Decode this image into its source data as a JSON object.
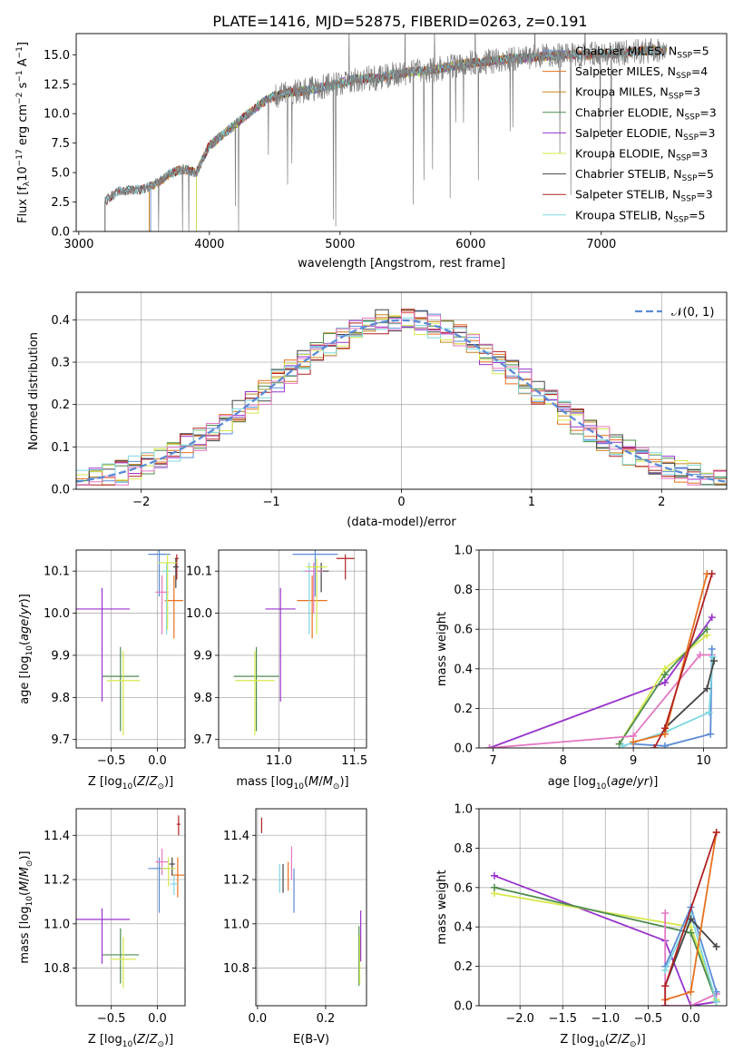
{
  "figure_title": "PLATE=1416, MJD=52875, FIBERID=0263, z=0.191",
  "colors": {
    "grid": "#b0b0b0",
    "data": "#808080",
    "normal": "#5b8bd6"
  },
  "chart_data": [
    {
      "id": "spectrum",
      "type": "line",
      "xlabel": "wavelength [Angstrom, rest frame]",
      "ylabel": "Flux [f_λ 10^-17 erg cm^-2 s^-1 A^-1]",
      "xlim": [
        2980,
        7960
      ],
      "ylim": [
        0,
        16.8
      ],
      "xticks": [
        3000,
        4000,
        5000,
        6000,
        7000
      ],
      "yticks": [
        0.0,
        2.5,
        5.0,
        7.5,
        10.0,
        12.5,
        15.0
      ],
      "grid": false,
      "legend_position": "top-right",
      "x": [
        3200,
        3300,
        3400,
        3500,
        3600,
        3700,
        3800,
        3900,
        4000,
        4100,
        4200,
        4300,
        4400,
        4500,
        4600,
        4700,
        4800,
        4900,
        5000,
        5100,
        5200,
        5300,
        5400,
        5500,
        5600,
        5700,
        5800,
        5900,
        6000,
        6100,
        6200,
        6300,
        6400,
        6500,
        6600,
        6700,
        6800,
        6900,
        7000,
        7100,
        7200,
        7300,
        7400
      ],
      "data_flux": [
        2.6,
        3.4,
        3.5,
        3.6,
        4.1,
        4.9,
        5.3,
        5.0,
        7.3,
        8.2,
        9.1,
        10.0,
        10.9,
        11.5,
        11.8,
        11.9,
        12.1,
        12.3,
        12.6,
        12.9,
        13.0,
        13.0,
        13.3,
        13.5,
        13.6,
        13.7,
        13.9,
        14.1,
        14.3,
        14.4,
        14.5,
        14.7,
        14.7,
        14.8,
        14.9,
        15.0,
        15.0,
        15.0,
        15.1,
        15.1,
        15.2,
        15.3,
        15.4
      ],
      "models": [
        {
          "name": "Chabrier MILES",
          "nssp": "5",
          "color": "#5b8bd6",
          "start": 3550,
          "end": 7500
        },
        {
          "name": "Salpeter MILES",
          "nssp": "4",
          "color": "#e8711f",
          "start": 3540,
          "end": 7500
        },
        {
          "name": "Kroupa MILES",
          "nssp": "3",
          "color": "#c8871d",
          "start": 3540,
          "end": 7500
        },
        {
          "name": "Chabrier ELODIE",
          "nssp": "3",
          "color": "#4e8c4e",
          "start": 3900,
          "end": 6800
        },
        {
          "name": "Salpeter ELODIE",
          "nssp": "3",
          "color": "#9933cc",
          "start": 3900,
          "end": 6800
        },
        {
          "name": "Kroupa ELODIE",
          "nssp": "3",
          "color": "#d6e84a",
          "start": 3900,
          "end": 6800
        },
        {
          "name": "Chabrier STELIB",
          "nssp": "5",
          "color": "#444444",
          "start": 3200,
          "end": 7500
        },
        {
          "name": "Salpeter STELIB",
          "nssp": "3",
          "color": "#b22222",
          "start": 3200,
          "end": 7500
        },
        {
          "name": "Kroupa STELIB",
          "nssp": "5",
          "color": "#7fd8e0",
          "start": 3200,
          "end": 7500
        }
      ]
    },
    {
      "id": "residuals",
      "type": "line",
      "xlabel": "(data-model)/error",
      "ylabel": "Normed distribution",
      "xlim": [
        -2.5,
        2.5
      ],
      "ylim": [
        0,
        0.465
      ],
      "xticks": [
        -2,
        -1,
        0,
        1,
        2
      ],
      "yticks": [
        0.0,
        0.1,
        0.2,
        0.3,
        0.4
      ],
      "grid": true,
      "legend_position": "top-right",
      "legend": "N(0,1)",
      "bins": [
        -2.5,
        2.5,
        50
      ]
    },
    {
      "id": "age_vs_Z",
      "type": "scatter",
      "xlabel": "Z [log10(Z/Z☉)]",
      "ylabel": "age [log10(age/yr)]",
      "xlim": [
        -0.88,
        0.3
      ],
      "ylim": [
        9.68,
        10.15
      ],
      "xticks": [
        -0.5,
        0.0
      ],
      "yticks": [
        9.7,
        9.8,
        9.9,
        10.0,
        10.1
      ],
      "grid": true,
      "points": [
        {
          "color": "#5b8bd6",
          "x": 0.02,
          "xerr": 0.12,
          "y": 10.14,
          "yerr": [
            0.1,
            0.01
          ]
        },
        {
          "color": "#e8711f",
          "x": 0.18,
          "xerr": 0.1,
          "y": 10.03,
          "yerr": [
            0.09,
            0.06
          ]
        },
        {
          "color": "#b22222",
          "x": 0.21,
          "xerr": 0.02,
          "y": 10.13,
          "yerr": [
            0.05,
            0.01
          ]
        },
        {
          "color": "#444444",
          "x": 0.2,
          "xerr": 0.03,
          "y": 10.11,
          "yerr": [
            0.05,
            0.02
          ]
        },
        {
          "color": "#7fd8e0",
          "x": 0.1,
          "xerr": 0.04,
          "y": 10.1,
          "yerr": [
            0.15,
            0.02
          ]
        },
        {
          "color": "#e377c2",
          "x": 0.05,
          "xerr": 0.07,
          "y": 10.05,
          "yerr": [
            0.1,
            0.04
          ]
        },
        {
          "color": "#d6e84a",
          "x": 0.11,
          "xerr": 0.1,
          "y": 10.12,
          "yerr": [
            0.16,
            0.02
          ]
        },
        {
          "color": "#4e8c4e",
          "x": -0.4,
          "xerr": 0.2,
          "y": 9.85,
          "yerr": [
            0.13,
            0.07
          ]
        },
        {
          "color": "#d6e84a",
          "x": -0.37,
          "xerr": 0.18,
          "y": 9.84,
          "yerr": [
            0.13,
            0.07
          ]
        },
        {
          "color": "#9933cc",
          "x": -0.6,
          "xerr": 0.3,
          "y": 10.01,
          "yerr": [
            0.22,
            0.05
          ]
        }
      ]
    },
    {
      "id": "age_vs_mass",
      "type": "scatter",
      "xlabel": "mass [log10(M/M☉)]",
      "ylabel": "",
      "xlim": [
        10.6,
        11.58
      ],
      "ylim": [
        9.68,
        10.15
      ],
      "xticks": [
        11.0,
        11.5
      ],
      "yticks": [
        9.7,
        9.8,
        9.9,
        10.0,
        10.1
      ],
      "grid": true,
      "points": [
        {
          "color": "#5b8bd6",
          "x": 11.24,
          "xerr": 0.15,
          "y": 10.14,
          "yerr": [
            0.1,
            0.01
          ]
        },
        {
          "color": "#e8711f",
          "x": 11.22,
          "xerr": 0.1,
          "y": 10.03,
          "yerr": [
            0.09,
            0.06
          ]
        },
        {
          "color": "#b22222",
          "x": 11.44,
          "xerr": 0.06,
          "y": 10.13,
          "yerr": [
            0.05,
            0.01
          ]
        },
        {
          "color": "#444444",
          "x": 11.28,
          "xerr": 0.05,
          "y": 10.1,
          "yerr": [
            0.05,
            0.02
          ]
        },
        {
          "color": "#7fd8e0",
          "x": 11.2,
          "xerr": 0.05,
          "y": 10.1,
          "yerr": [
            0.15,
            0.02
          ]
        },
        {
          "color": "#e377c2",
          "x": 11.23,
          "xerr": 0.06,
          "y": 10.1,
          "yerr": [
            0.1,
            0.02
          ]
        },
        {
          "color": "#d6e84a",
          "x": 11.25,
          "xerr": 0.07,
          "y": 10.11,
          "yerr": [
            0.16,
            0.02
          ]
        },
        {
          "color": "#4e8c4e",
          "x": 10.85,
          "xerr": 0.15,
          "y": 9.85,
          "yerr": [
            0.13,
            0.07
          ]
        },
        {
          "color": "#d6e84a",
          "x": 10.84,
          "xerr": 0.13,
          "y": 9.84,
          "yerr": [
            0.13,
            0.07
          ]
        },
        {
          "color": "#9933cc",
          "x": 11.01,
          "xerr": 0.1,
          "y": 10.01,
          "yerr": [
            0.22,
            0.05
          ]
        }
      ]
    },
    {
      "id": "weight_vs_age",
      "type": "line",
      "xlabel": "age [log10(age/yr)]",
      "ylabel": "mass weight",
      "xlim": [
        6.8,
        10.33
      ],
      "ylim": [
        0,
        1.0
      ],
      "xticks": [
        7,
        8,
        9,
        10
      ],
      "yticks": [
        0.0,
        0.2,
        0.4,
        0.6,
        0.8,
        1.0
      ],
      "grid": true,
      "series": [
        {
          "color": "#9933cc",
          "x": [
            6.95,
            9.45,
            10.12
          ],
          "y": [
            0.0,
            0.33,
            0.66
          ]
        },
        {
          "color": "#d6e84a",
          "x": [
            8.8,
            9.45,
            10.05
          ],
          "y": [
            0.02,
            0.4,
            0.57
          ]
        },
        {
          "color": "#4e8c4e",
          "x": [
            8.8,
            9.45,
            10.05
          ],
          "y": [
            0.02,
            0.37,
            0.6
          ]
        },
        {
          "color": "#e377c2",
          "x": [
            6.95,
            9.0,
            9.95,
            10.12
          ],
          "y": [
            0.0,
            0.06,
            0.47,
            0.47
          ]
        },
        {
          "color": "#5b8bd6",
          "x": [
            9.0,
            9.45,
            10.1,
            10.12
          ],
          "y": [
            0.02,
            0.01,
            0.07,
            0.5
          ]
        },
        {
          "color": "#7fd8e0",
          "x": [
            8.85,
            9.45,
            10.08,
            10.13
          ],
          "y": [
            0.01,
            0.08,
            0.18,
            0.46
          ]
        },
        {
          "color": "#444444",
          "x": [
            9.45,
            10.05,
            10.15
          ],
          "y": [
            0.1,
            0.3,
            0.44
          ]
        },
        {
          "color": "#e8711f",
          "x": [
            9.0,
            9.45,
            10.05
          ],
          "y": [
            0.03,
            0.07,
            0.88
          ]
        },
        {
          "color": "#b22222",
          "x": [
            9.3,
            9.45,
            10.12
          ],
          "y": [
            0.0,
            0.1,
            0.88
          ]
        }
      ]
    },
    {
      "id": "mass_vs_Z",
      "type": "scatter",
      "xlabel": "Z [log10(Z/Z☉)]",
      "ylabel": "mass [log10(M/M☉)]",
      "xlim": [
        -0.88,
        0.3
      ],
      "ylim": [
        10.63,
        11.52
      ],
      "xticks": [
        -0.5,
        0.0
      ],
      "yticks": [
        10.8,
        11.0,
        11.2,
        11.4
      ],
      "grid": true,
      "points": [
        {
          "color": "#5b8bd6",
          "x": 0.02,
          "xerr": 0.12,
          "y": 11.25,
          "yerr": [
            0.2,
            0.05
          ]
        },
        {
          "color": "#e8711f",
          "x": 0.22,
          "xerr": 0.07,
          "y": 11.22,
          "yerr": [
            0.1,
            0.08
          ]
        },
        {
          "color": "#b22222",
          "x": 0.23,
          "xerr": 0.02,
          "y": 11.45,
          "yerr": [
            0.05,
            0.04
          ]
        },
        {
          "color": "#444444",
          "x": 0.16,
          "xerr": 0.03,
          "y": 11.27,
          "yerr": [
            0.05,
            0.03
          ]
        },
        {
          "color": "#7fd8e0",
          "x": 0.18,
          "xerr": 0.04,
          "y": 11.18,
          "yerr": [
            0.05,
            0.04
          ]
        },
        {
          "color": "#e377c2",
          "x": 0.05,
          "xerr": 0.07,
          "y": 11.28,
          "yerr": [
            0.06,
            0.06
          ]
        },
        {
          "color": "#d6e84a",
          "x": 0.12,
          "xerr": 0.08,
          "y": 11.25,
          "yerr": [
            0.08,
            0.05
          ]
        },
        {
          "color": "#4e8c4e",
          "x": -0.4,
          "xerr": 0.2,
          "y": 10.86,
          "yerr": [
            0.13,
            0.12
          ]
        },
        {
          "color": "#d6e84a",
          "x": -0.37,
          "xerr": 0.14,
          "y": 10.84,
          "yerr": [
            0.13,
            0.1
          ]
        },
        {
          "color": "#9933cc",
          "x": -0.6,
          "xerr": 0.3,
          "y": 11.02,
          "yerr": [
            0.2,
            0.05
          ]
        }
      ]
    },
    {
      "id": "mass_vs_ebv",
      "type": "scatter",
      "xlabel": "E(B-V)",
      "ylabel": "",
      "xlim": [
        -0.005,
        0.32
      ],
      "ylim": [
        10.63,
        11.52
      ],
      "xticks": [
        0.0,
        0.2
      ],
      "yticks": [
        10.8,
        11.0,
        11.2,
        11.4
      ],
      "grid": true,
      "points": [
        {
          "color": "#b22222",
          "x": 0.012,
          "xerr": 0,
          "y": 11.45,
          "yerr": [
            0.04,
            0.03
          ]
        },
        {
          "color": "#7fd8e0",
          "x": 0.065,
          "xerr": 0,
          "y": 11.22,
          "yerr": [
            0.08,
            0.05
          ]
        },
        {
          "color": "#444444",
          "x": 0.075,
          "xerr": 0,
          "y": 11.22,
          "yerr": [
            0.08,
            0.05
          ]
        },
        {
          "color": "#e8711f",
          "x": 0.09,
          "xerr": 0,
          "y": 11.23,
          "yerr": [
            0.08,
            0.05
          ]
        },
        {
          "color": "#e377c2",
          "x": 0.1,
          "xerr": 0,
          "y": 11.27,
          "yerr": [
            0.07,
            0.08
          ]
        },
        {
          "color": "#5b8bd6",
          "x": 0.107,
          "xerr": 0,
          "y": 11.2,
          "yerr": [
            0.15,
            0.05
          ]
        },
        {
          "color": "#4e8c4e",
          "x": 0.298,
          "xerr": 0,
          "y": 10.87,
          "yerr": [
            0.15,
            0.12
          ]
        },
        {
          "color": "#d6e84a",
          "x": 0.3,
          "xerr": 0,
          "y": 10.85,
          "yerr": [
            0.12,
            0.1
          ]
        },
        {
          "color": "#9933cc",
          "x": 0.303,
          "xerr": 0,
          "y": 10.95,
          "yerr": [
            0.12,
            0.11
          ]
        }
      ]
    },
    {
      "id": "weight_vs_Z",
      "type": "line",
      "xlabel": "Z [log10(Z/Z☉)]",
      "ylabel": "mass weight",
      "xlim": [
        -2.48,
        0.42
      ],
      "ylim": [
        0,
        1.0
      ],
      "xticks": [
        -2.0,
        -1.5,
        -1.0,
        -0.5,
        0.0
      ],
      "yticks": [
        0.0,
        0.2,
        0.4,
        0.6,
        0.8,
        1.0
      ],
      "grid": true,
      "series": [
        {
          "color": "#9933cc",
          "x": [
            -2.3,
            -0.3,
            0.0,
            0.3
          ],
          "y": [
            0.66,
            0.33,
            0.0,
            0.02
          ]
        },
        {
          "color": "#d6e84a",
          "x": [
            -2.3,
            0.0,
            0.3
          ],
          "y": [
            0.57,
            0.4,
            0.03
          ]
        },
        {
          "color": "#4e8c4e",
          "x": [
            -2.3,
            0.0,
            0.3
          ],
          "y": [
            0.6,
            0.37,
            0.02
          ]
        },
        {
          "color": "#e377c2",
          "x": [
            -0.3,
            -0.3,
            0.0,
            0.3
          ],
          "y": [
            0.47,
            0.0,
            0.0,
            0.06
          ]
        },
        {
          "color": "#5b8bd6",
          "x": [
            -0.3,
            0.0,
            0.3
          ],
          "y": [
            0.2,
            0.5,
            0.07
          ]
        },
        {
          "color": "#7fd8e0",
          "x": [
            -0.3,
            0.0,
            0.3
          ],
          "y": [
            0.18,
            0.46,
            0.02
          ]
        },
        {
          "color": "#444444",
          "x": [
            -0.3,
            0.0,
            0.3
          ],
          "y": [
            0.1,
            0.44,
            0.3
          ]
        },
        {
          "color": "#e8711f",
          "x": [
            -0.3,
            0.0,
            0.3
          ],
          "y": [
            0.03,
            0.07,
            0.88
          ]
        },
        {
          "color": "#b22222",
          "x": [
            -0.3,
            -0.3,
            0.3
          ],
          "y": [
            0.0,
            0.1,
            0.88
          ]
        }
      ]
    }
  ]
}
